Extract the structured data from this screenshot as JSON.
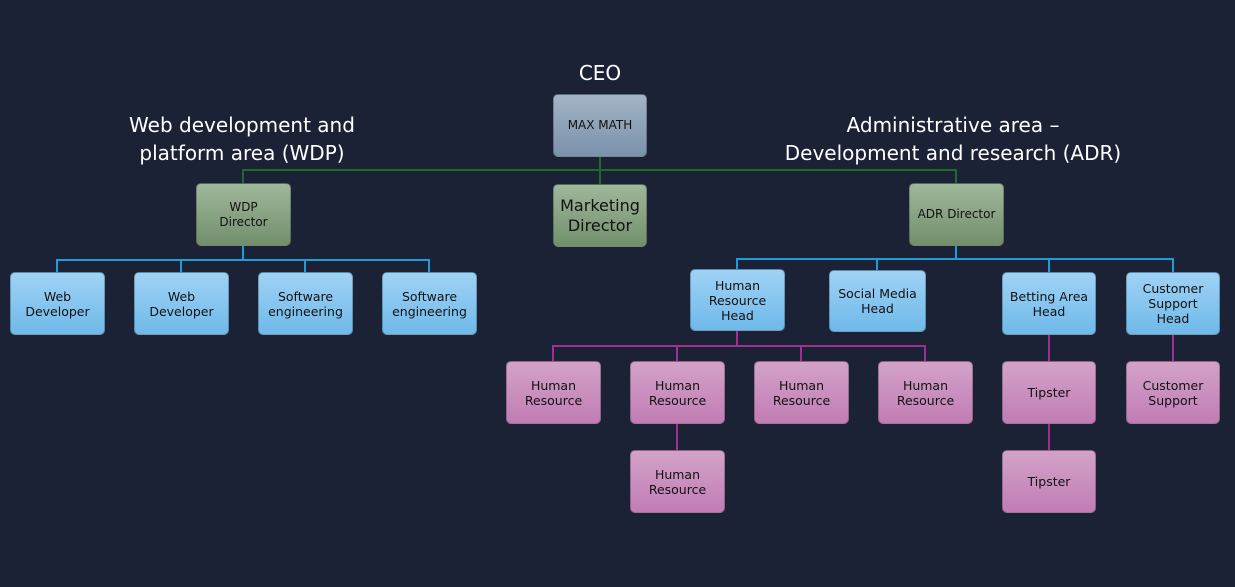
{
  "titles": {
    "ceo": "CEO",
    "wdp": "Web development and\nplatform area (WDP)",
    "adr": "Administrative area –\nDevelopment and research (ADR)"
  },
  "colors": {
    "background": "#1b2236",
    "executive_line": "#1e6b2a",
    "head_line": "#1e9bd8",
    "staff_line": "#a0308f"
  },
  "nodes": {
    "ceo": "MAX MATH",
    "marketing": "Marketing\nDirector",
    "wdp_director": "WDP\nDirector",
    "adr_director": "ADR Director",
    "web_dev_1": "Web\nDeveloper",
    "web_dev_2": "Web\nDeveloper",
    "software_eng_1": "Software\nengineering",
    "software_eng_2": "Software\nengineering",
    "hr_head": "Human\nResource\nHead",
    "social_media_head": "Social Media\nHead",
    "betting_head": "Betting Area\nHead",
    "cs_head": "Customer\nSupport\nHead",
    "hr_1": "Human\nResource",
    "hr_2": "Human\nResource",
    "hr_3": "Human\nResource",
    "hr_4": "Human\nResource",
    "hr_5": "Human\nResource",
    "tipster_1": "Tipster",
    "tipster_2": "Tipster",
    "customer_support": "Customer\nSupport"
  }
}
